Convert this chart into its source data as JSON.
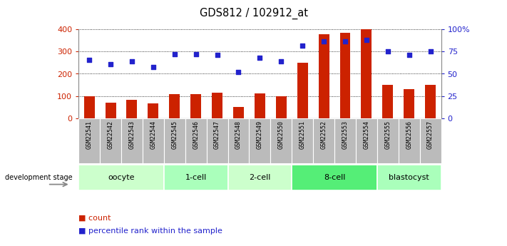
{
  "title": "GDS812 / 102912_at",
  "samples": [
    "GSM22541",
    "GSM22542",
    "GSM22543",
    "GSM22544",
    "GSM22545",
    "GSM22546",
    "GSM22547",
    "GSM22548",
    "GSM22549",
    "GSM22550",
    "GSM22551",
    "GSM22552",
    "GSM22553",
    "GSM22554",
    "GSM22555",
    "GSM22556",
    "GSM22557"
  ],
  "counts": [
    100,
    68,
    82,
    65,
    108,
    108,
    115,
    50,
    113,
    100,
    250,
    380,
    385,
    400,
    150,
    132,
    150
  ],
  "percentiles": [
    66,
    61,
    64,
    58,
    72,
    72,
    71,
    52,
    68,
    64,
    82,
    87,
    87,
    88,
    75,
    71,
    75
  ],
  "bar_color": "#cc2200",
  "dot_color": "#2222cc",
  "ylim_left": [
    0,
    400
  ],
  "ylim_right": [
    0,
    100
  ],
  "yticks_left": [
    0,
    100,
    200,
    300,
    400
  ],
  "yticks_right": [
    0,
    25,
    50,
    75,
    100
  ],
  "yticklabels_right": [
    "0",
    "25",
    "50",
    "75",
    "100%"
  ],
  "groups": [
    {
      "label": "oocyte",
      "start": 0,
      "end": 3,
      "color": "#ccffcc"
    },
    {
      "label": "1-cell",
      "start": 4,
      "end": 6,
      "color": "#aaffbb"
    },
    {
      "label": "2-cell",
      "start": 7,
      "end": 9,
      "color": "#ccffcc"
    },
    {
      "label": "8-cell",
      "start": 10,
      "end": 13,
      "color": "#55ee77"
    },
    {
      "label": "blastocyst",
      "start": 14,
      "end": 16,
      "color": "#aaffbb"
    }
  ],
  "dev_label": "development stage",
  "legend_count": "count",
  "legend_pct": "percentile rank within the sample",
  "tick_color_left": "#cc2200",
  "tick_color_right": "#2222cc",
  "xtick_bg": "#bbbbbb",
  "bg_plot": "#ffffff"
}
